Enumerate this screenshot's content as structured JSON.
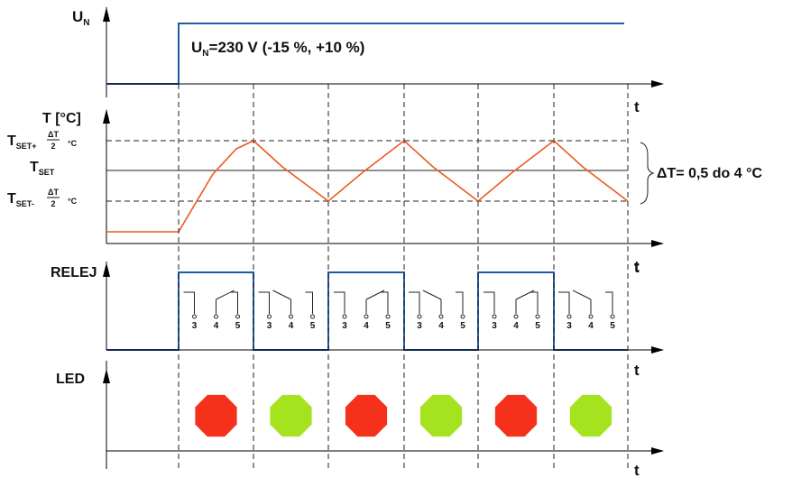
{
  "supply": {
    "label_main": "U",
    "label_sub": "N",
    "value_text": "=230 V (-15 %, +10 %)"
  },
  "temperature": {
    "axis_label": "T [°C]",
    "set_main": "T",
    "set_sub": "SET",
    "upper_sub": "SET+",
    "lower_sub": "SET-",
    "frac_num": "ΔT",
    "frac_den": "2",
    "unit": "°C",
    "delta_text": "ΔT= 0,5 do 4 °C"
  },
  "relay": {
    "label": "RELEJ",
    "contact_labels": [
      "3",
      "4",
      "5"
    ]
  },
  "led": {
    "label": "LED",
    "states": [
      "red",
      "green",
      "red",
      "green",
      "red",
      "green"
    ]
  },
  "time_label": "t",
  "colors": {
    "signal_blue": "#1f5aa6",
    "temperature_orange": "#ec5a1f",
    "led_red": "#f5311b",
    "led_green": "#a6e31f"
  }
}
